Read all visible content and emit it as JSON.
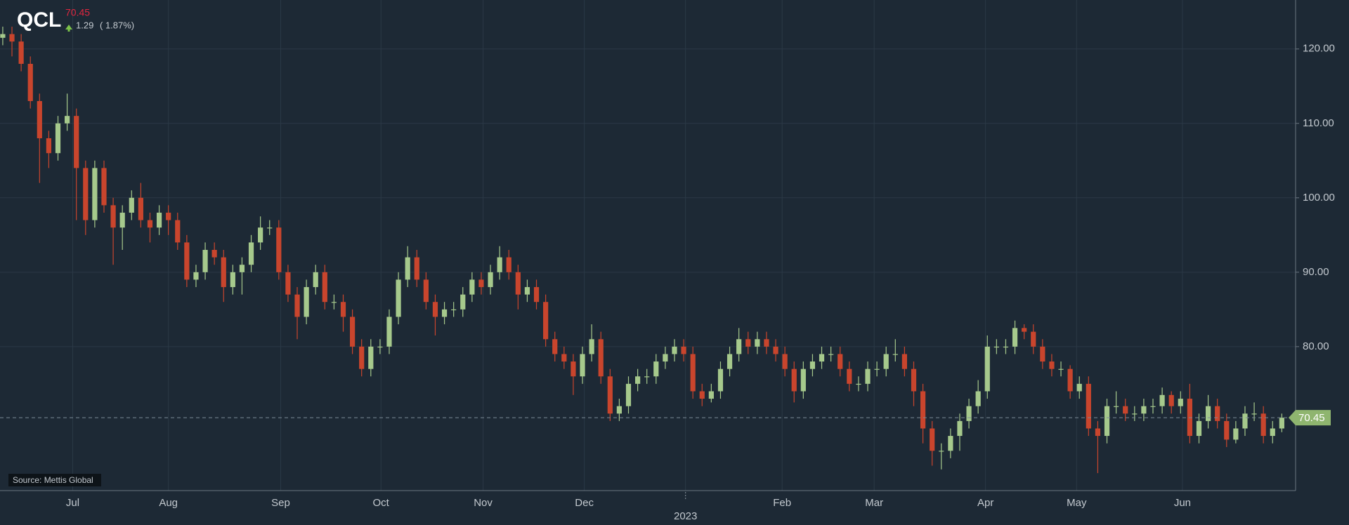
{
  "chart_data": {
    "type": "candlestick",
    "symbol": "QCL",
    "price": 70.45,
    "change": 1.29,
    "change_pct_label": "( 1.87%)",
    "source": "Source: Mettis Global",
    "up_color": "#a6c98c",
    "down_color": "#c9452d",
    "last_price": 70.45,
    "last_price_color": "#8fb56f",
    "grid": true,
    "xlim": [
      -0.3,
      140.5
    ],
    "xticks": [
      {
        "value": 7.6,
        "label": "Jul"
      },
      {
        "value": 18.0,
        "label": "Aug"
      },
      {
        "value": 30.2,
        "label": "Sep"
      },
      {
        "value": 41.1,
        "label": "Oct"
      },
      {
        "value": 52.2,
        "label": "Nov"
      },
      {
        "value": 63.2,
        "label": "Dec"
      },
      {
        "value": 84.7,
        "label": "Feb"
      },
      {
        "value": 94.7,
        "label": "Mar"
      },
      {
        "value": 106.8,
        "label": "Apr"
      },
      {
        "value": 116.7,
        "label": "May"
      },
      {
        "value": 128.2,
        "label": "Jun"
      }
    ],
    "year_tick": {
      "value": 74.2,
      "label": "2023"
    },
    "ylim": [
      60.65,
      126.58
    ],
    "yticks": [
      {
        "value": 80,
        "label": "80.00"
      },
      {
        "value": 90,
        "label": "90.00"
      },
      {
        "value": 100,
        "label": "100.00"
      },
      {
        "value": 110,
        "label": "110.00"
      },
      {
        "value": 120,
        "label": "120.00"
      }
    ],
    "open": [
      121.5,
      122,
      121,
      118,
      113,
      108,
      106,
      110,
      111,
      104,
      97,
      104,
      99,
      96,
      98,
      100,
      97,
      96,
      98,
      97,
      94,
      89,
      90,
      93,
      92,
      88,
      90,
      91,
      94,
      96,
      96,
      90,
      87,
      84,
      88,
      90,
      86,
      86,
      84,
      80,
      77,
      80,
      80,
      84,
      89,
      92,
      89,
      86,
      84,
      85,
      85,
      87,
      89,
      88,
      90,
      92,
      90,
      87,
      88,
      86,
      81,
      79,
      78,
      76,
      79,
      81,
      76,
      71,
      72,
      75,
      76,
      76,
      78,
      79,
      80,
      79,
      74,
      73,
      74,
      77,
      79,
      81,
      80,
      81,
      80,
      79,
      77,
      74,
      77,
      78,
      79,
      79,
      77,
      75,
      75,
      77,
      77,
      79,
      79,
      77,
      74,
      69,
      66,
      66,
      68,
      70,
      72,
      74,
      80,
      80,
      80,
      82.5,
      82,
      80,
      78,
      77,
      77,
      74,
      75,
      69,
      68,
      72,
      72,
      71,
      71,
      72,
      72,
      73.5,
      72,
      73,
      68,
      70,
      72,
      70,
      67.5,
      69,
      71,
      71,
      68,
      69
    ],
    "high": [
      123,
      123,
      122,
      119,
      114,
      109,
      111,
      114,
      112,
      105,
      105,
      105,
      100,
      99,
      101,
      102,
      98,
      99,
      99,
      98,
      95,
      91,
      94,
      94,
      93,
      91,
      92,
      95,
      97.5,
      97,
      97,
      91,
      88,
      89,
      91,
      91,
      87,
      87,
      85,
      81,
      81,
      81,
      85,
      90,
      93.5,
      93,
      90,
      87,
      86,
      86,
      88,
      90,
      90,
      91,
      93.5,
      93,
      91,
      89,
      89,
      87,
      82,
      80,
      79,
      80,
      83,
      82,
      77,
      73,
      76,
      77,
      77,
      79,
      80,
      81,
      81,
      80,
      75,
      75,
      78,
      80,
      82.5,
      82,
      82,
      82,
      81,
      80,
      78,
      78,
      79,
      80,
      80,
      80,
      78,
      76,
      78,
      78,
      80,
      81,
      80,
      78,
      75,
      70,
      67,
      69,
      71,
      73,
      75.5,
      81.5,
      81,
      81,
      83.5,
      83,
      83,
      81,
      79,
      78,
      77.5,
      76,
      76,
      70,
      73,
      74,
      73,
      72,
      73,
      73,
      74.5,
      74,
      74,
      75,
      71,
      73.5,
      73,
      71,
      70,
      72,
      72.5,
      72,
      70,
      71
    ],
    "low": [
      120.5,
      119,
      117,
      112,
      102,
      104,
      105,
      109,
      97,
      95,
      96,
      98,
      91,
      93,
      97,
      96,
      94,
      95,
      95,
      93,
      88,
      88,
      89,
      91,
      86,
      87,
      87,
      90,
      93,
      95,
      89,
      86,
      81,
      83,
      87,
      85,
      85,
      82,
      79,
      76,
      76,
      79,
      79,
      83,
      88,
      88,
      85,
      81.5,
      83,
      84,
      84,
      86,
      87,
      87,
      89,
      89,
      85,
      86,
      85,
      80,
      78,
      77,
      73.5,
      75,
      78,
      75,
      70,
      70,
      71,
      74,
      75,
      75,
      77,
      78,
      78,
      73,
      72,
      72.5,
      73,
      76,
      78,
      79,
      79,
      79,
      78,
      76,
      72.5,
      73,
      76,
      77,
      78,
      76,
      74,
      74,
      74,
      76,
      76,
      78,
      76,
      72,
      67,
      64,
      63.5,
      65,
      66,
      69,
      71,
      73,
      79,
      79,
      79,
      81,
      79,
      77,
      76,
      76,
      73,
      73,
      68,
      63,
      67,
      71,
      70,
      70,
      70,
      71,
      71,
      71,
      71,
      67,
      67,
      69,
      69,
      66.5,
      67,
      68,
      70,
      67,
      67,
      68.5
    ],
    "close": [
      122,
      121,
      118,
      113,
      108,
      106,
      110,
      111,
      104,
      97,
      104,
      99,
      96,
      98,
      100,
      97,
      96,
      98,
      97,
      94,
      89,
      90,
      93,
      92,
      88,
      90,
      91,
      94,
      96,
      96,
      90,
      87,
      84,
      88,
      90,
      86,
      86,
      84,
      80,
      77,
      80,
      80,
      84,
      89,
      92,
      89,
      86,
      84,
      85,
      85,
      87,
      89,
      88,
      90,
      92,
      90,
      87,
      88,
      86,
      81,
      79,
      78,
      76,
      79,
      81,
      76,
      71,
      72,
      75,
      76,
      76,
      78,
      79,
      80,
      79,
      74,
      73,
      74,
      77,
      79,
      81,
      80,
      81,
      80,
      79,
      77,
      74,
      77,
      78,
      79,
      79,
      77,
      75,
      75,
      77,
      77,
      79,
      79,
      77,
      74,
      69,
      66,
      66,
      68,
      70,
      72,
      74,
      80,
      80,
      80,
      82.5,
      82,
      80,
      78,
      77,
      77,
      74,
      75,
      69,
      68,
      72,
      72,
      71,
      71,
      72,
      72,
      73.5,
      72,
      73,
      68,
      70,
      72,
      70,
      67.5,
      69,
      71,
      71,
      68,
      69,
      70.45
    ]
  }
}
